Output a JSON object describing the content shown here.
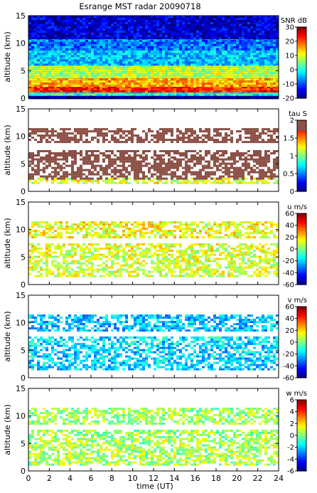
{
  "chart_data": {
    "title": "Esrange MST radar 20090718",
    "type": "heatmap",
    "xlabel": "time (UT)",
    "xlim": [
      0,
      24
    ],
    "xticks": [
      "0",
      "2",
      "4",
      "6",
      "8",
      "10",
      "12",
      "14",
      "16",
      "18",
      "20",
      "22",
      "24"
    ],
    "panels": [
      {
        "id": "snr",
        "ylabel": "altitude (km)",
        "ylim": [
          0,
          15
        ],
        "yticks": [
          "0",
          "5",
          "10",
          "15"
        ],
        "colorbar": {
          "label": "SNR dB",
          "range": [
            -20,
            30
          ],
          "ticks": [
            "-20",
            "-10",
            "0",
            "10",
            "20",
            "30"
          ],
          "map": "jet"
        },
        "fill": "full",
        "layers": [
          {
            "alt_from": 0.0,
            "alt_to": 0.6,
            "value": -18
          },
          {
            "alt_from": 0.6,
            "alt_to": 1.2,
            "value": 0
          },
          {
            "alt_from": 1.2,
            "alt_to": 2.2,
            "value": 22
          },
          {
            "alt_from": 2.2,
            "alt_to": 4.0,
            "value": 15
          },
          {
            "alt_from": 4.0,
            "alt_to": 6.0,
            "value": 8
          },
          {
            "alt_from": 6.0,
            "alt_to": 9.0,
            "value": -4
          },
          {
            "alt_from": 9.0,
            "alt_to": 11.0,
            "value": -8
          },
          {
            "alt_from": 11.0,
            "alt_to": 15.0,
            "value": -16
          }
        ]
      },
      {
        "id": "tau",
        "ylabel": "altitude (km)",
        "ylim": [
          0,
          15
        ],
        "yticks": [
          "0",
          "5",
          "10",
          "15"
        ],
        "colorbar": {
          "label": "tau S",
          "range": [
            0,
            2
          ],
          "ticks": [
            "0",
            "0.5",
            "1",
            "1.5",
            "2"
          ],
          "map": "jet-brown"
        },
        "fill": "sparse",
        "layers": [
          {
            "alt_from": 1.5,
            "alt_to": 2.5,
            "value": 1.2
          },
          {
            "alt_from": 2.5,
            "alt_to": 6.0,
            "value": 2.0
          },
          {
            "alt_from": 6.0,
            "alt_to": 7.5,
            "value": 2.0
          },
          {
            "alt_from": 9.0,
            "alt_to": 11.5,
            "value": 2.0
          }
        ]
      },
      {
        "id": "u",
        "ylabel": "altitude (km)",
        "ylim": [
          0,
          15
        ],
        "yticks": [
          "0",
          "5",
          "10",
          "15"
        ],
        "colorbar": {
          "label": "u m/s",
          "range": [
            -60,
            60
          ],
          "ticks": [
            "-60",
            "-40",
            "-20",
            "0",
            "20",
            "40",
            "60"
          ],
          "map": "jet"
        },
        "fill": "sparse",
        "layers": [
          {
            "alt_from": 1.5,
            "alt_to": 6.0,
            "value": 10
          },
          {
            "alt_from": 6.0,
            "alt_to": 7.5,
            "value": 12
          },
          {
            "alt_from": 8.5,
            "alt_to": 11.5,
            "value": 14
          }
        ]
      },
      {
        "id": "v",
        "ylabel": "altitude (km)",
        "ylim": [
          0,
          15
        ],
        "yticks": [
          "0",
          "5",
          "10",
          "15"
        ],
        "colorbar": {
          "label": "v m/s",
          "range": [
            -60,
            60
          ],
          "ticks": [
            "-60",
            "-40",
            "-20",
            "0",
            "20",
            "40",
            "60"
          ],
          "map": "jet"
        },
        "fill": "sparse",
        "layers": [
          {
            "alt_from": 1.5,
            "alt_to": 6.0,
            "value": -20
          },
          {
            "alt_from": 6.0,
            "alt_to": 7.5,
            "value": -18
          },
          {
            "alt_from": 8.5,
            "alt_to": 11.5,
            "value": -22
          }
        ]
      },
      {
        "id": "w",
        "ylabel": "altitude (km)",
        "ylim": [
          0,
          15
        ],
        "yticks": [
          "0",
          "5",
          "10",
          "15"
        ],
        "colorbar": {
          "label": "w m/s",
          "range": [
            -6,
            6
          ],
          "ticks": [
            "-6",
            "-4",
            "-2",
            "0",
            "2",
            "4",
            "6"
          ],
          "map": "jet"
        },
        "fill": "sparse",
        "layers": [
          {
            "alt_from": 1.0,
            "alt_to": 6.0,
            "value": 0.5
          },
          {
            "alt_from": 6.0,
            "alt_to": 7.5,
            "value": 0.3
          },
          {
            "alt_from": 8.5,
            "alt_to": 11.5,
            "value": 0.4
          }
        ]
      }
    ]
  }
}
